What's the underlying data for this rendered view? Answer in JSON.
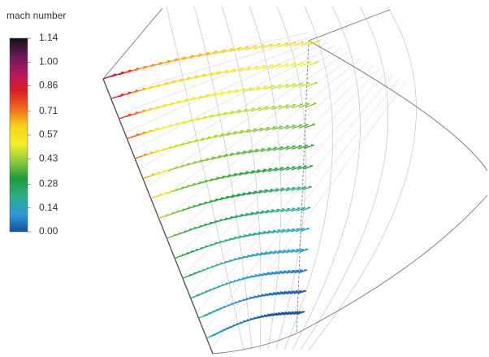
{
  "colorbar": {
    "title": "mach number",
    "lim": [
      0,
      1.14
    ],
    "ticks": [
      1.14,
      {
        "value": 1,
        "label": "1.00"
      },
      0.86,
      0.71,
      0.57,
      0.43,
      0.28,
      0.14,
      {
        "value": 0,
        "label": "0.00"
      }
    ],
    "colors": [
      "#1a4fa0",
      "#2b9bd6",
      "#2fae8a",
      "#1e9a3c",
      "#8ccb3a",
      "#f4ee2a",
      "#f7d21a",
      "#ef6a1c",
      "#d81f26",
      "#b5185e",
      "#6a1a5a",
      "#111111"
    ]
  }
}
